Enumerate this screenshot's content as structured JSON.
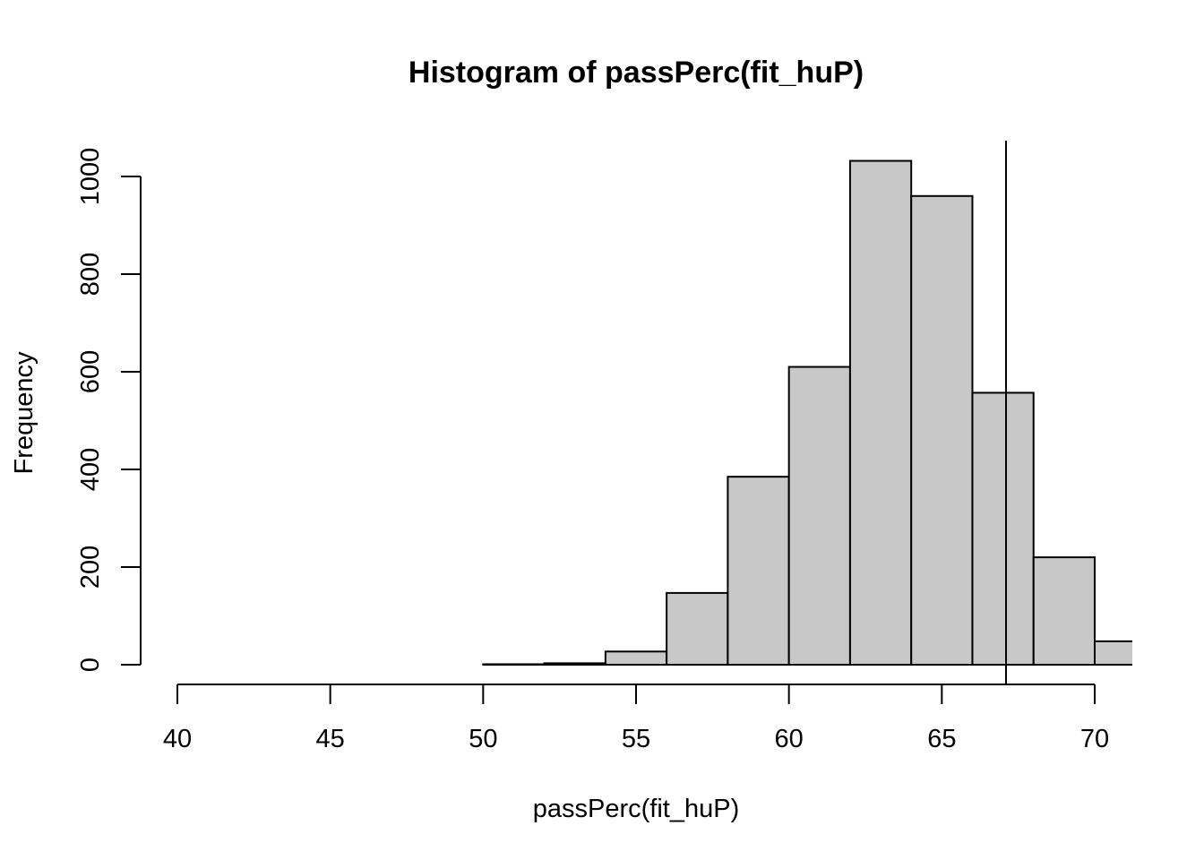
{
  "chart_data": {
    "type": "bar",
    "title": "Histogram of passPerc(fit_huP)",
    "xlabel": "passPerc(fit_huP)",
    "ylabel": "Frequency",
    "xlim": [
      40,
      71.2
    ],
    "ylim": [
      0,
      1075
    ],
    "x_ticks": [
      40,
      45,
      50,
      55,
      60,
      65,
      70
    ],
    "y_ticks": [
      0,
      200,
      400,
      600,
      800,
      1000
    ],
    "bin_edges": [
      50,
      52,
      54,
      56,
      58,
      60,
      62,
      64,
      66,
      68,
      70,
      72
    ],
    "values": [
      1,
      3,
      27,
      147,
      385,
      610,
      1032,
      960,
      557,
      220,
      48
    ],
    "vline_x": 67.1,
    "bar_color": "#c8c8c8",
    "grid": false
  }
}
